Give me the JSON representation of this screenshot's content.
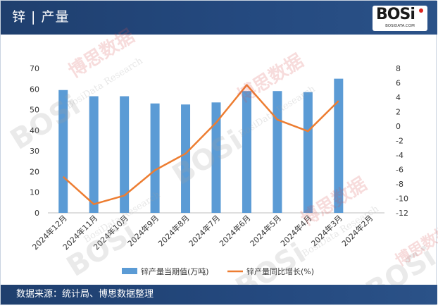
{
  "header": {
    "title": "锌 | 产量"
  },
  "logo": {
    "main": "BOSi",
    "sub": "BOSIDATA.COM"
  },
  "watermark": {
    "brand": "BOSi",
    "cn": "博思数据",
    "en": "BosiData Research"
  },
  "footer": {
    "source": "数据来源：统计局、博思数据整理"
  },
  "colors": {
    "bar": "#5b9bd5",
    "line": "#ed7d31",
    "header": "#24497f"
  },
  "chart_data": {
    "type": "bar",
    "categories": [
      "2024年12月",
      "2024年11月",
      "2024年10月",
      "2024年9月",
      "2024年8月",
      "2024年7月",
      "2024年6月",
      "2024年5月",
      "2024年4月",
      "2024年3月",
      "2024年2月"
    ],
    "series": [
      {
        "name": "锌产量当期值(万吨)",
        "type": "bar",
        "axis": "left",
        "values": [
          59.5,
          56.5,
          56.5,
          53,
          52.5,
          53.5,
          59,
          59,
          58.5,
          65,
          null
        ]
      },
      {
        "name": "锌产量同比增长(%)",
        "type": "line",
        "axis": "right",
        "values": [
          -7,
          -10.8,
          -9.6,
          -6.1,
          -3.8,
          0.5,
          5.7,
          0.9,
          -0.7,
          3.5,
          null
        ]
      }
    ],
    "y_left": {
      "min": 0,
      "max": 70,
      "step": 10,
      "ticks": [
        "0",
        "10",
        "20",
        "30",
        "40",
        "50",
        "60",
        "70"
      ]
    },
    "y_right": {
      "min": -12,
      "max": 8,
      "step": 2,
      "ticks": [
        "-12",
        "-10",
        "-8",
        "-6",
        "-4",
        "-2",
        "0",
        "2",
        "4",
        "6",
        "8"
      ]
    },
    "legend_position": "bottom",
    "grid": false
  }
}
